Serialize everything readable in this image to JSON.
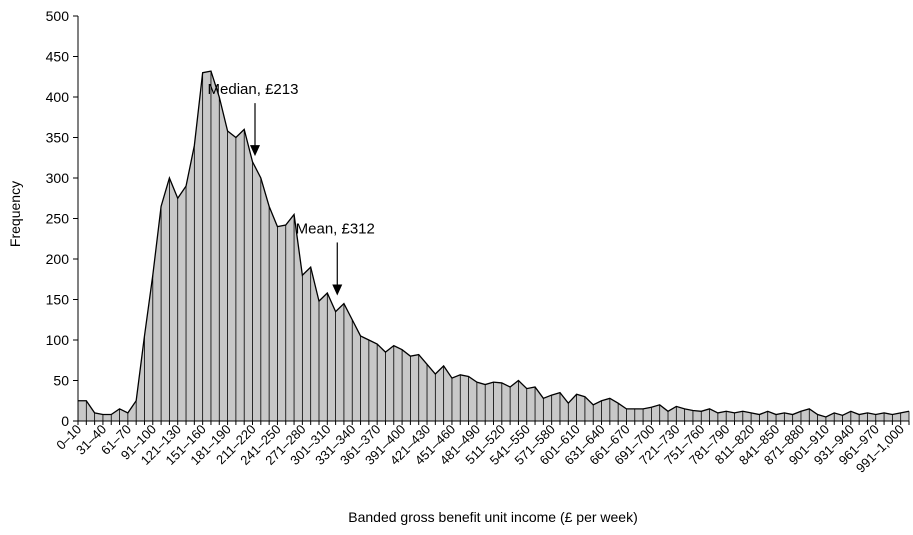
{
  "chart_data": {
    "type": "area",
    "title": "",
    "xlabel": "Banded gross benefit unit income (£ per week)",
    "ylabel": "Frequency",
    "ylim": [
      0,
      500
    ],
    "yticks": [
      0,
      50,
      100,
      150,
      200,
      250,
      300,
      350,
      400,
      450,
      500
    ],
    "fill_color": "#c8c8c8",
    "line_color": "#000000",
    "grid": false,
    "legend": "none",
    "band_width": 10,
    "x": [
      10,
      20,
      30,
      40,
      50,
      60,
      70,
      80,
      90,
      100,
      110,
      120,
      130,
      140,
      150,
      160,
      170,
      180,
      190,
      200,
      210,
      220,
      230,
      240,
      250,
      260,
      270,
      280,
      290,
      300,
      310,
      320,
      330,
      340,
      350,
      360,
      370,
      380,
      390,
      400,
      410,
      420,
      430,
      440,
      450,
      460,
      470,
      480,
      490,
      500,
      510,
      520,
      530,
      540,
      550,
      560,
      570,
      580,
      590,
      600,
      610,
      620,
      630,
      640,
      650,
      660,
      670,
      680,
      690,
      700,
      710,
      720,
      730,
      740,
      750,
      760,
      770,
      780,
      790,
      800,
      810,
      820,
      830,
      840,
      850,
      860,
      870,
      880,
      890,
      900,
      910,
      920,
      930,
      940,
      950,
      960,
      970,
      980,
      990,
      1000
    ],
    "values": [
      25,
      10,
      8,
      8,
      15,
      10,
      25,
      105,
      180,
      265,
      300,
      275,
      290,
      340,
      430,
      432,
      400,
      358,
      350,
      360,
      320,
      300,
      265,
      240,
      242,
      255,
      180,
      190,
      148,
      158,
      135,
      145,
      125,
      105,
      100,
      95,
      85,
      93,
      88,
      80,
      82,
      70,
      58,
      68,
      53,
      57,
      55,
      48,
      45,
      48,
      47,
      42,
      50,
      40,
      42,
      28,
      32,
      35,
      22,
      33,
      30,
      20,
      25,
      28,
      22,
      15,
      15,
      15,
      17,
      20,
      12,
      18,
      15,
      13,
      12,
      15,
      10,
      12,
      10,
      12,
      10,
      8,
      12,
      8,
      10,
      8,
      12,
      15,
      8,
      5,
      10,
      7,
      12,
      8,
      10,
      8,
      10,
      8,
      10,
      12
    ],
    "categories": [
      "0–10",
      "31–40",
      "61–70",
      "91–100",
      "121–130",
      "151–160",
      "181–190",
      "211–220",
      "241–250",
      "271–280",
      "301–310",
      "331–340",
      "361–370",
      "391–400",
      "421–430",
      "451–460",
      "481–490",
      "511–520",
      "541–550",
      "571–580",
      "601–610",
      "631–640",
      "661–670",
      "691–700",
      "721–730",
      "751–760",
      "781–790",
      "811–820",
      "841–850",
      "871–880",
      "901–910",
      "931–940",
      "961–970",
      "991–1,000"
    ],
    "annotations": [
      {
        "text": "Median, £213",
        "x": 213,
        "y": 327
      },
      {
        "text": "Mean, £312",
        "x": 312,
        "y": 155
      }
    ]
  }
}
